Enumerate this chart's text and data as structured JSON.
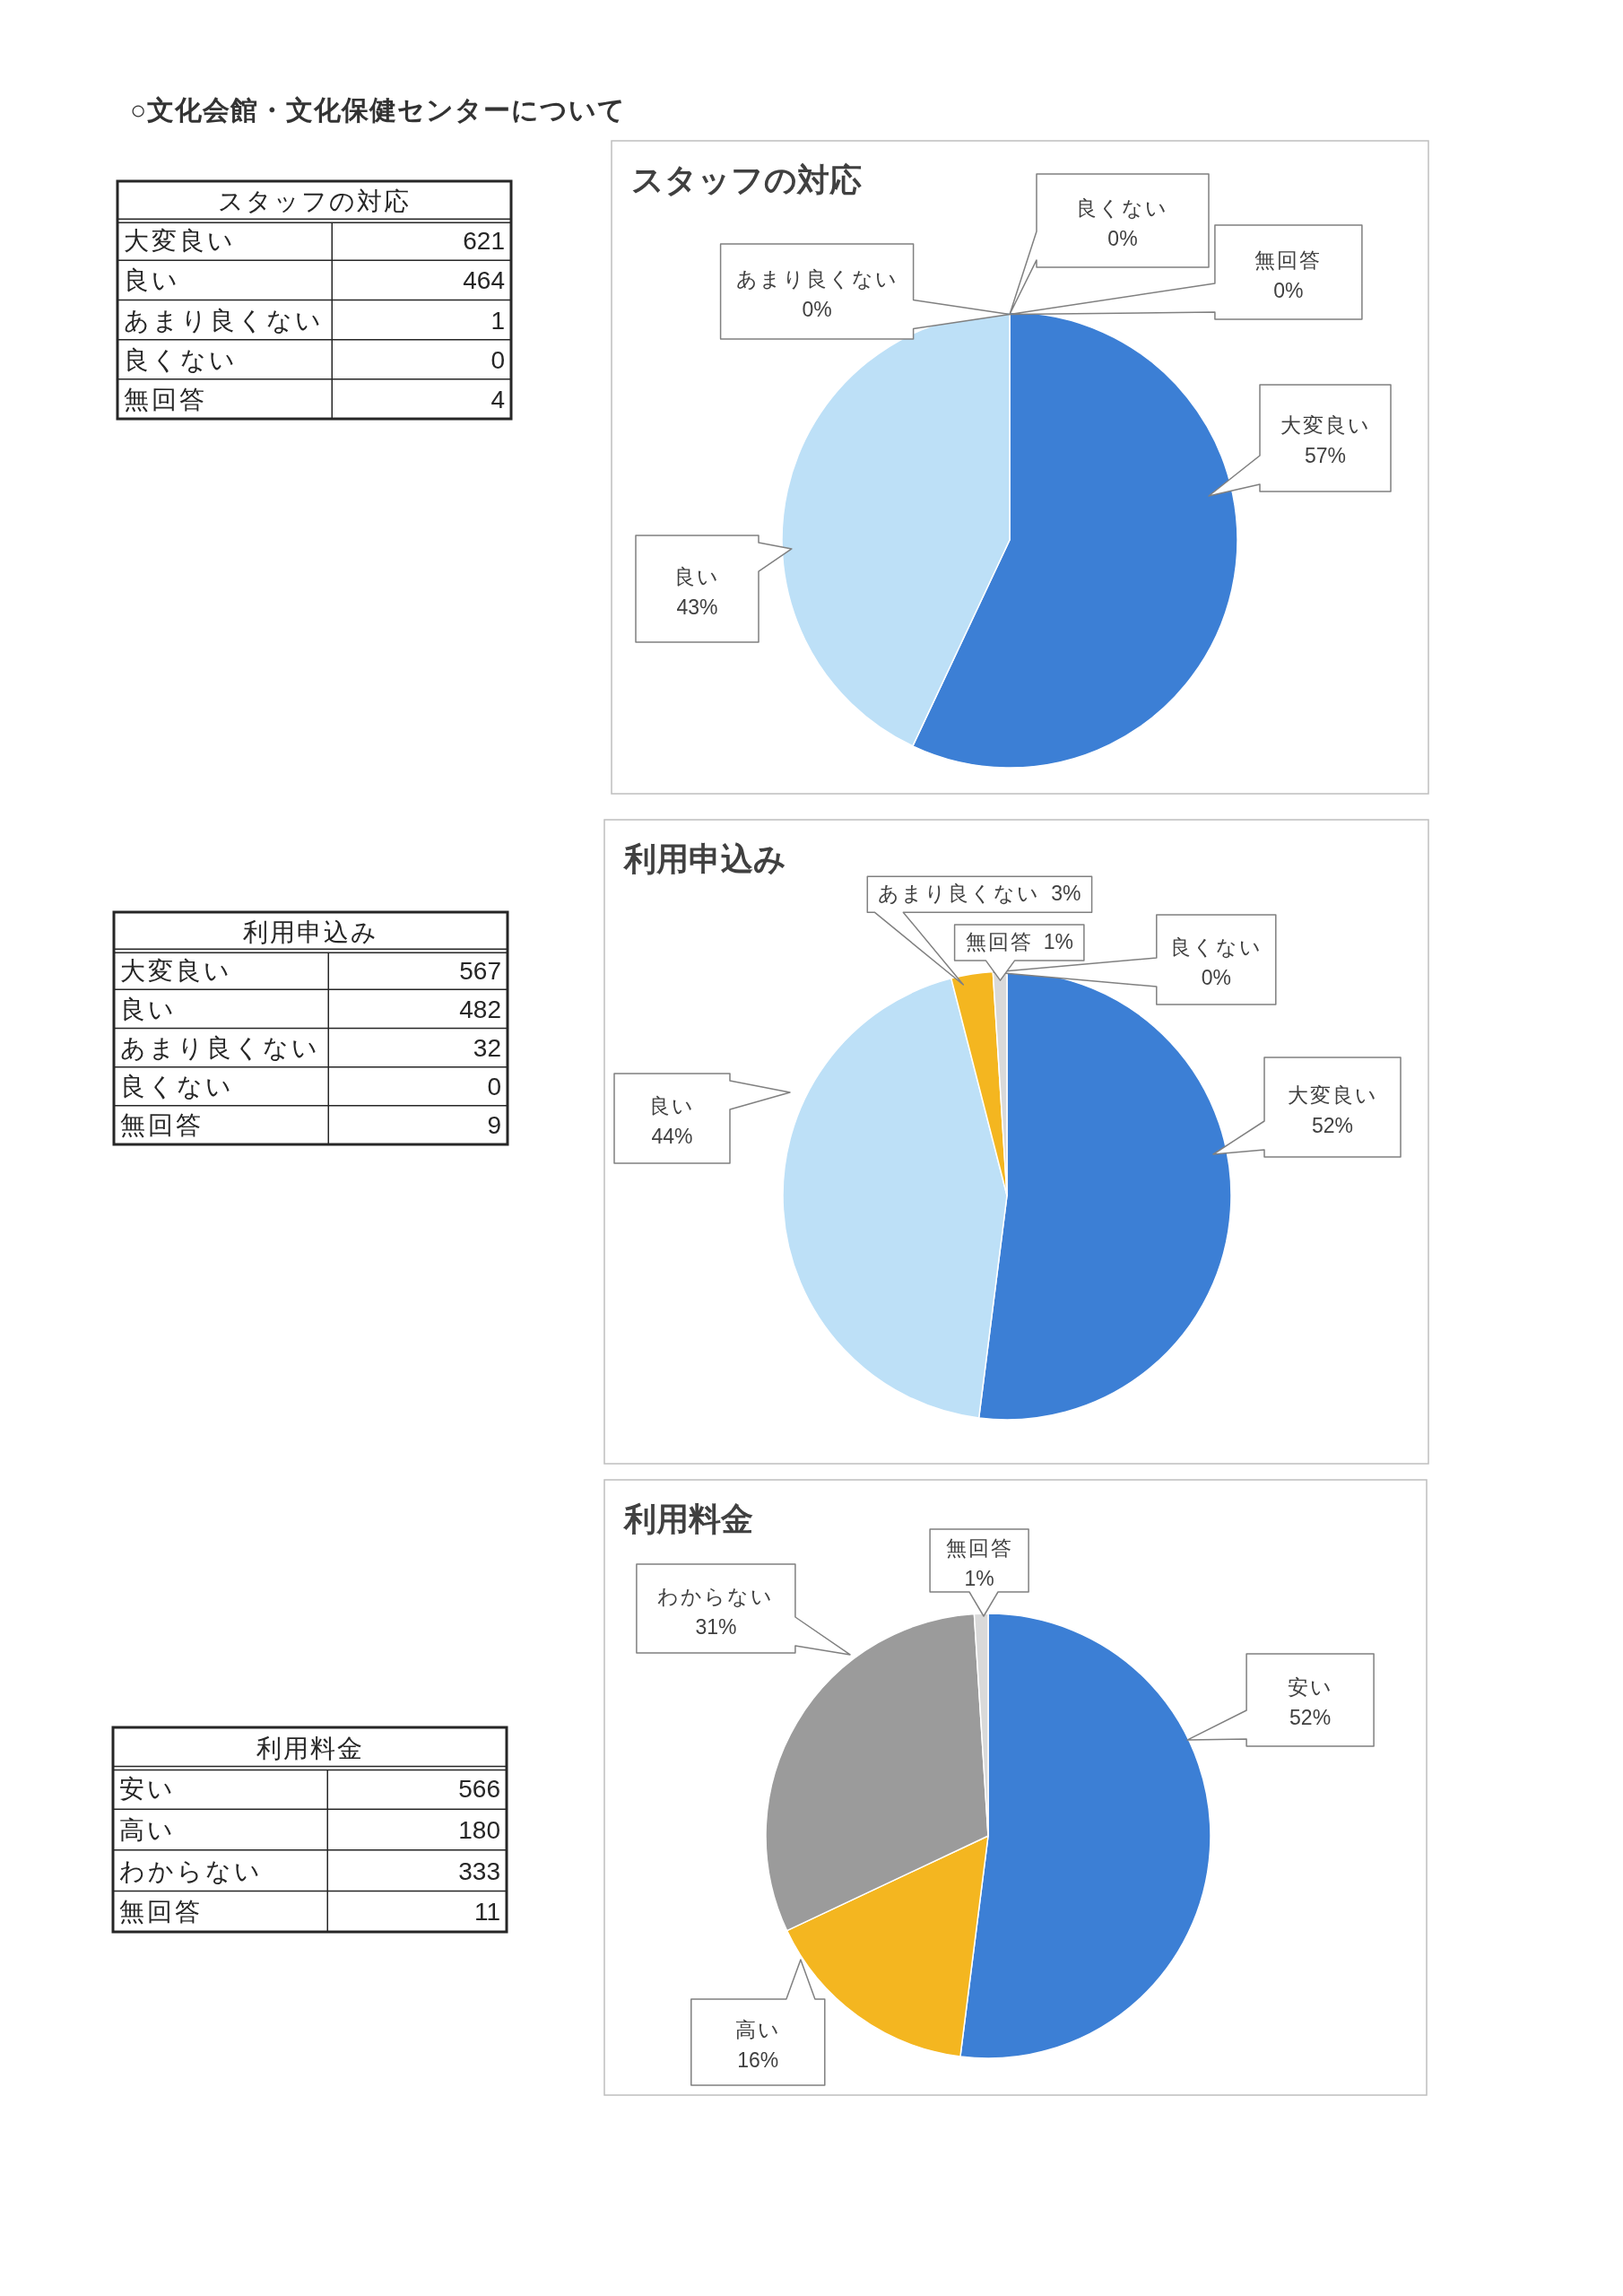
{
  "chart_data": [
    {
      "type": "other",
      "title": "○文化会館・文化保健センターについて"
    },
    {
      "type": "other",
      "title": "スタッフの対応",
      "categories": [
        "大変良い",
        "良い",
        "あまり良くない",
        "良くない",
        "無回答"
      ],
      "values": [
        621,
        464,
        1,
        0,
        4
      ],
      "data_labels": true
    },
    {
      "type": "pie",
      "title": "スタッフの対応",
      "categories": [
        "大変良い",
        "良い",
        "あまり良くない",
        "良くない",
        "無回答"
      ],
      "values": [
        57,
        43,
        0,
        0,
        0
      ],
      "colors": [
        "#3c7fd5",
        "#bde0f7",
        null,
        null,
        null
      ],
      "value_labels": [
        "57%",
        "43%",
        "0%",
        "0%",
        "0%"
      ]
    },
    {
      "type": "other",
      "title": "利用申込み",
      "categories": [
        "大変良い",
        "良い",
        "あまり良くない",
        "良くない",
        "無回答"
      ],
      "values": [
        567,
        482,
        32,
        0,
        9
      ],
      "data_labels": true
    },
    {
      "type": "pie",
      "title": "利用申込み",
      "categories": [
        "大変良い",
        "良い",
        "あまり良くない",
        "良くない",
        "無回答"
      ],
      "values": [
        52,
        44,
        3,
        0,
        1
      ],
      "colors": [
        "#3c7fd5",
        "#bde0f7",
        "#f4b620",
        null,
        "#d9d9d9"
      ],
      "value_labels": [
        "52%",
        "44%",
        "3%",
        "0%",
        "1%"
      ]
    },
    {
      "type": "other",
      "title": "利用料金",
      "categories": [
        "安い",
        "高い",
        "わからない",
        "無回答"
      ],
      "values": [
        566,
        180,
        333,
        11
      ],
      "data_labels": true
    },
    {
      "type": "pie",
      "title": "利用料金",
      "categories": [
        "安い",
        "高い",
        "わからない",
        "無回答"
      ],
      "values": [
        52,
        16,
        31,
        1
      ],
      "colors": [
        "#3c7fd5",
        "#f4b620",
        "#9b9b9b",
        "#d9d9d9"
      ],
      "value_labels": [
        "52%",
        "16%",
        "31%",
        "1%"
      ]
    }
  ]
}
